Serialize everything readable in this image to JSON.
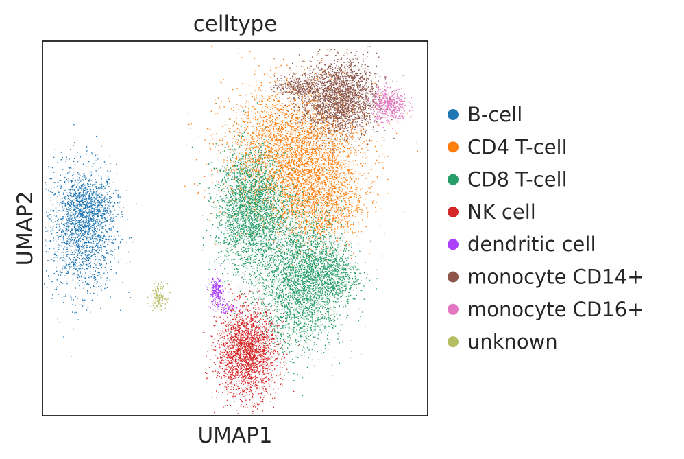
{
  "chart_data": {
    "type": "scatter",
    "title": "celltype",
    "xlabel": "UMAP1",
    "ylabel": "UMAP2",
    "xlim": [
      0,
      100
    ],
    "ylim": [
      0,
      100
    ],
    "grid": false,
    "show_ticks": false,
    "legend_position": "right",
    "series": [
      {
        "name": "B-cell",
        "color": "#1f77b4",
        "clusters": [
          {
            "x": 10,
            "y": 50,
            "sx": 4.5,
            "sy": 8.5,
            "n": 1800
          },
          {
            "x": 12,
            "y": 56,
            "sx": 3.0,
            "sy": 3.5,
            "n": 400
          }
        ]
      },
      {
        "name": "CD4 T-cell",
        "color": "#ff7f0e",
        "clusters": [
          {
            "x": 65,
            "y": 70,
            "sx": 9.0,
            "sy": 9.0,
            "n": 3600
          },
          {
            "x": 72,
            "y": 57,
            "sx": 5.5,
            "sy": 6.0,
            "n": 1200
          }
        ]
      },
      {
        "name": "CD8 T-cell",
        "color": "#279e68",
        "clusters": [
          {
            "x": 54,
            "y": 55,
            "sx": 4.5,
            "sy": 8.0,
            "n": 2600
          },
          {
            "x": 67,
            "y": 36,
            "sx": 5.5,
            "sy": 9.0,
            "n": 2800
          },
          {
            "x": 75,
            "y": 38,
            "sx": 3.5,
            "sy": 4.0,
            "n": 600
          }
        ]
      },
      {
        "name": "NK cell",
        "color": "#d62728",
        "clusters": [
          {
            "x": 53,
            "y": 17,
            "sx": 3.8,
            "sy": 6.0,
            "n": 2200
          }
        ]
      },
      {
        "name": "dendritic cell",
        "color": "#aa40fc",
        "clusters": [
          {
            "x": 45,
            "y": 33,
            "sx": 0.9,
            "sy": 2.2,
            "n": 200
          },
          {
            "x": 48,
            "y": 29,
            "sx": 1.5,
            "sy": 0.7,
            "n": 60
          }
        ]
      },
      {
        "name": "monocyte CD14+",
        "color": "#8c564b",
        "clusters": [
          {
            "x": 77,
            "y": 85,
            "sx": 5.0,
            "sy": 5.0,
            "n": 2400
          },
          {
            "x": 66,
            "y": 88,
            "sx": 3.0,
            "sy": 1.5,
            "n": 300
          }
        ]
      },
      {
        "name": "monocyte CD16+",
        "color": "#e377c2",
        "clusters": [
          {
            "x": 90,
            "y": 83,
            "sx": 2.3,
            "sy": 2.3,
            "n": 500
          }
        ]
      },
      {
        "name": "unknown",
        "color": "#b5bd61",
        "clusters": [
          {
            "x": 30,
            "y": 32,
            "sx": 1.0,
            "sy": 1.6,
            "n": 140
          }
        ]
      }
    ]
  }
}
